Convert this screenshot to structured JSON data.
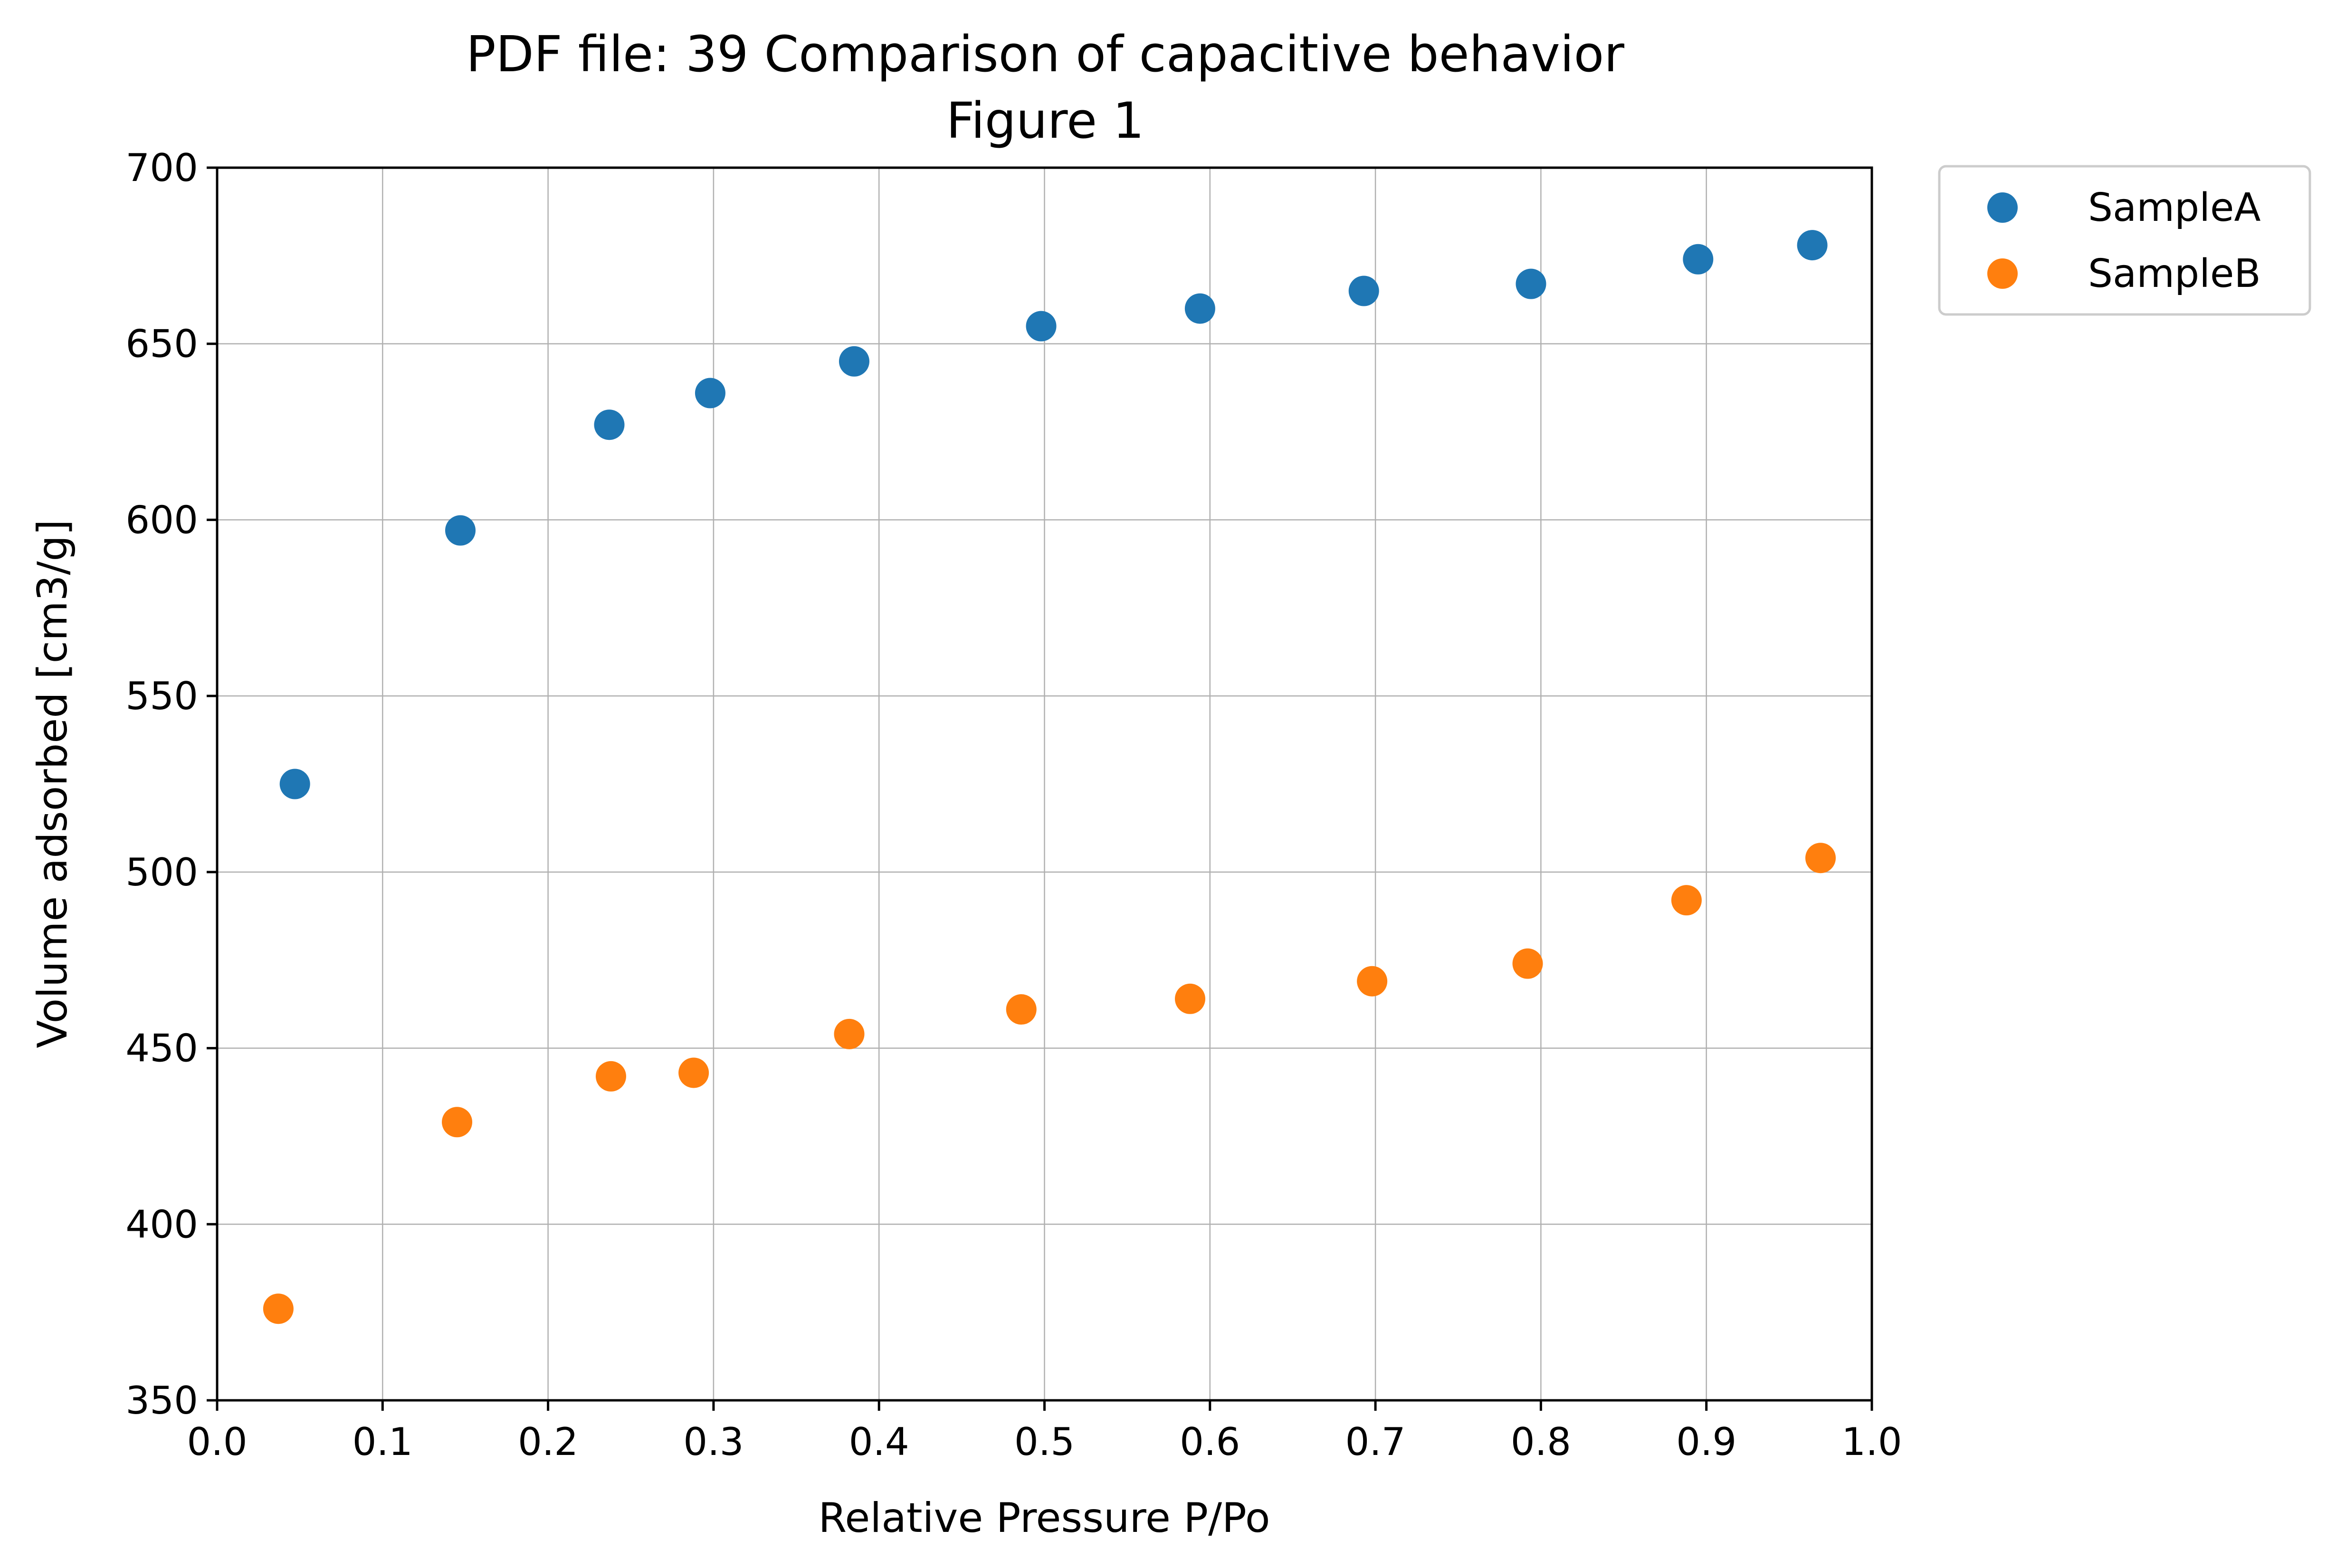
{
  "chart_data": {
    "type": "scatter",
    "title": "PDF file: 39 Comparison of capacitive behavior",
    "subtitle": "Figure 1",
    "xlabel": "Relative Pressure P/Po",
    "ylabel": "Volume adsorbed [cm3/g]",
    "xlim": [
      0.0,
      1.0
    ],
    "ylim": [
      350,
      700
    ],
    "xticks": [
      0.0,
      0.1,
      0.2,
      0.3,
      0.4,
      0.5,
      0.6,
      0.7,
      0.8,
      0.9,
      1.0
    ],
    "xtick_labels": [
      "0.0",
      "0.1",
      "0.2",
      "0.3",
      "0.4",
      "0.5",
      "0.6",
      "0.7",
      "0.8",
      "0.9",
      "1.0"
    ],
    "yticks": [
      350,
      400,
      450,
      500,
      550,
      600,
      650,
      700
    ],
    "ytick_labels": [
      "350",
      "400",
      "450",
      "500",
      "550",
      "600",
      "650",
      "700"
    ],
    "grid": true,
    "legend_position": "outside-top-right",
    "series": [
      {
        "name": "SampleA",
        "color": "#1f77b4",
        "x": [
          0.047,
          0.147,
          0.237,
          0.298,
          0.385,
          0.498,
          0.594,
          0.693,
          0.794,
          0.895,
          0.964
        ],
        "y": [
          525,
          597,
          627,
          636,
          645,
          655,
          660,
          665,
          667,
          674,
          678
        ]
      },
      {
        "name": "SampleB",
        "color": "#ff7f0e",
        "x": [
          0.037,
          0.145,
          0.238,
          0.288,
          0.382,
          0.486,
          0.588,
          0.698,
          0.792,
          0.888,
          0.969
        ],
        "y": [
          376,
          429,
          442,
          443,
          454,
          461,
          464,
          469,
          474,
          492,
          504
        ]
      }
    ]
  }
}
